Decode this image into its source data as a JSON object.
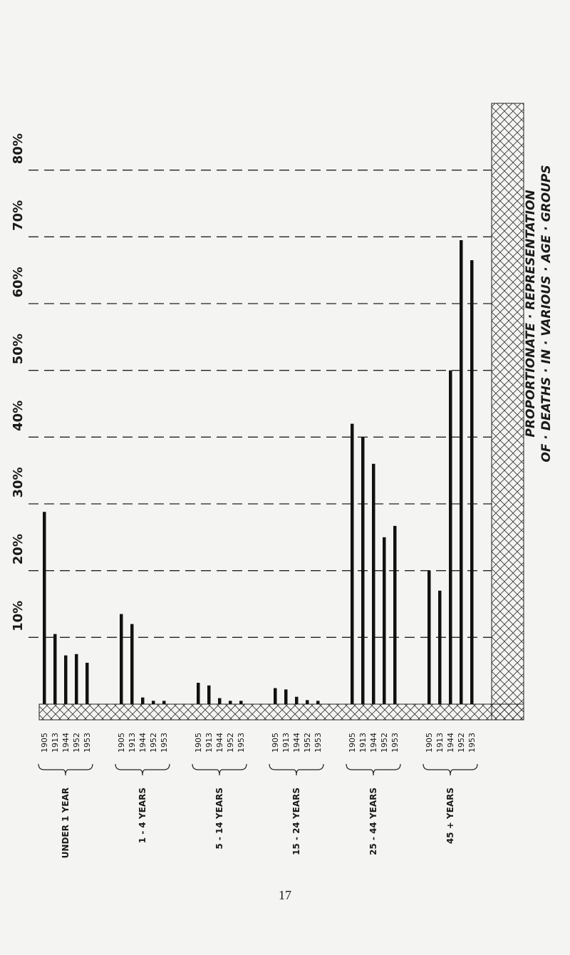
{
  "chart_data": {
    "type": "bar",
    "title": "PROPORTIONATE · REPRESENTATION",
    "subtitle": "OF · DEATHS · IN · VARIOUS · AGE · GROUPS",
    "categories": [
      "UNDER 1 YEAR",
      "1 - 4 YEARS",
      "5 - 14 YEARS",
      "15 - 24 YEARS",
      "25 - 44 YEARS",
      "45 + YEARS"
    ],
    "series": [
      {
        "name": "1905",
        "color": "#111111",
        "values": [
          28.8,
          13.5,
          3.2,
          2.4,
          42,
          20
        ]
      },
      {
        "name": "1913",
        "color": "#111111",
        "values": [
          10.5,
          12,
          2.8,
          2.2,
          40,
          17
        ]
      },
      {
        "name": "1944",
        "color": "#111111",
        "values": [
          7.3,
          1,
          0.9,
          1.1,
          36,
          50
        ]
      },
      {
        "name": "1952",
        "color": "#111111",
        "values": [
          7.5,
          0.5,
          0.5,
          0.6,
          25,
          69.5
        ]
      },
      {
        "name": "1953",
        "color": "#111111",
        "values": [
          6.2,
          0.5,
          0.5,
          0.5,
          26.7,
          66.5
        ]
      }
    ],
    "ylim": [
      0,
      90
    ],
    "yticks": [
      {
        "value": 10,
        "label": "10%"
      },
      {
        "value": 20,
        "label": "20%"
      },
      {
        "value": 30,
        "label": "30%"
      },
      {
        "value": 40,
        "label": "40%"
      },
      {
        "value": 50,
        "label": "50%"
      },
      {
        "value": 60,
        "label": "60%"
      },
      {
        "value": 70,
        "label": "70%"
      },
      {
        "value": 80,
        "label": "80%"
      }
    ],
    "grid": true,
    "page_number": "17"
  }
}
